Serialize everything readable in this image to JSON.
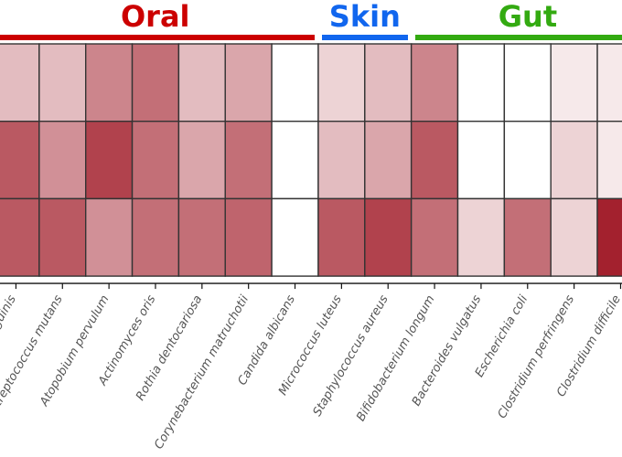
{
  "colors": {
    "oral": "#cc0000",
    "skin": "#1166ee",
    "gut": "#33aa11",
    "cell_border": "#333333",
    "heat_low": "#ffffff",
    "heat_high": "#a3212e"
  },
  "groups": [
    {
      "key": "oral",
      "label": "Oral",
      "start": 0,
      "end": 6
    },
    {
      "key": "skin",
      "label": "Skin",
      "start": 7,
      "end": 8
    },
    {
      "key": "gut",
      "label": "Gut",
      "start": 9,
      "end": 13
    }
  ],
  "chart_data": {
    "type": "heatmap",
    "title": "",
    "xlabel": "",
    "ylabel": "",
    "categories": [
      "Streptococcus sanguinis",
      "Streptococcus mutans",
      "Atopobium pervulum",
      "Actinomyces oris",
      "Rothia dentocariosa",
      "Corynebacterium matruchotii",
      "Candida albicans",
      "Micrococcus luteus",
      "Staphylococcus aureus",
      "Bifidobacterium longum",
      "Bacteroides vulgatus",
      "Escherichia coli",
      "Clostridium perfringens",
      "Clostridium difficile"
    ],
    "rows": [
      {
        "values": [
          0.3,
          0.3,
          0.55,
          0.65,
          0.3,
          0.4,
          0.0,
          0.2,
          0.3,
          0.55,
          0.0,
          0.0,
          0.1,
          0.1
        ]
      },
      {
        "values": [
          0.75,
          0.5,
          0.85,
          0.65,
          0.4,
          0.65,
          0.0,
          0.3,
          0.4,
          0.75,
          0.0,
          0.0,
          0.2,
          0.1
        ]
      },
      {
        "values": [
          0.75,
          0.75,
          0.5,
          0.65,
          0.65,
          0.7,
          0.0,
          0.75,
          0.85,
          0.65,
          0.2,
          0.65,
          0.2,
          1.0
        ]
      }
    ]
  }
}
